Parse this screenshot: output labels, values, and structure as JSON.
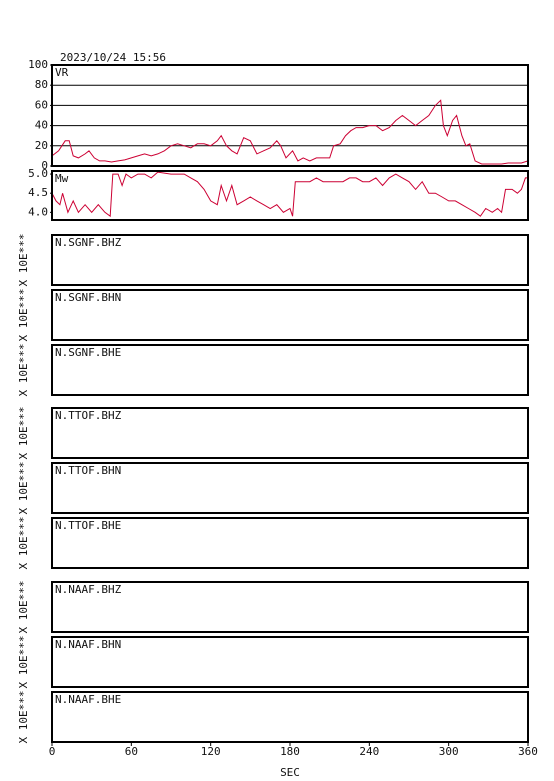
{
  "timestamp": "2023/10/24 15:56",
  "chart_data": [
    {
      "type": "line",
      "title": "VR",
      "color": "#cc0033",
      "grid": true,
      "ylim": [
        0,
        100
      ],
      "yticks": [
        0,
        20,
        40,
        60,
        80,
        100
      ],
      "x": [
        0,
        5,
        10,
        13,
        16,
        20,
        25,
        28,
        32,
        36,
        40,
        45,
        50,
        55,
        60,
        65,
        70,
        75,
        80,
        85,
        90,
        95,
        100,
        105,
        110,
        115,
        120,
        125,
        128,
        132,
        136,
        140,
        145,
        150,
        155,
        160,
        165,
        170,
        173,
        177,
        182,
        186,
        190,
        195,
        200,
        205,
        210,
        213,
        218,
        222,
        226,
        230,
        235,
        240,
        245,
        250,
        255,
        260,
        265,
        270,
        275,
        280,
        285,
        290,
        294,
        296,
        299,
        303,
        306,
        310,
        313,
        316,
        320,
        325,
        330,
        335,
        340,
        345,
        350,
        355,
        360
      ],
      "values": [
        10,
        15,
        25,
        25,
        10,
        8,
        12,
        15,
        8,
        5,
        5,
        4,
        5,
        6,
        8,
        10,
        12,
        10,
        12,
        15,
        20,
        22,
        20,
        18,
        22,
        22,
        20,
        25,
        30,
        20,
        15,
        12,
        28,
        25,
        12,
        15,
        18,
        25,
        20,
        8,
        15,
        5,
        8,
        5,
        8,
        8,
        8,
        20,
        22,
        30,
        35,
        38,
        38,
        40,
        40,
        35,
        38,
        45,
        50,
        45,
        40,
        45,
        50,
        60,
        65,
        40,
        30,
        45,
        50,
        30,
        20,
        22,
        5,
        2,
        2,
        2,
        2,
        3,
        3,
        3,
        5
      ]
    },
    {
      "type": "line",
      "title": "Mw",
      "color": "#cc0033",
      "grid": false,
      "ylim": [
        3.8,
        5.08
      ],
      "yticks": [
        {
          "value": 5,
          "label": "5.0"
        },
        4.5,
        {
          "value": 4,
          "label": "4.0"
        }
      ],
      "x": [
        0,
        3,
        6,
        8,
        12,
        16,
        20,
        25,
        30,
        35,
        40,
        44,
        46,
        50,
        53,
        56,
        60,
        65,
        70,
        75,
        80,
        90,
        100,
        105,
        110,
        115,
        120,
        125,
        128,
        132,
        136,
        140,
        145,
        150,
        155,
        160,
        165,
        170,
        175,
        180,
        182,
        184,
        190,
        195,
        200,
        205,
        210,
        215,
        220,
        225,
        230,
        235,
        240,
        245,
        250,
        255,
        260,
        265,
        270,
        275,
        280,
        285,
        290,
        295,
        300,
        305,
        310,
        315,
        320,
        324,
        328,
        333,
        337,
        340,
        343,
        348,
        352,
        355,
        358,
        360
      ],
      "values": [
        4.5,
        4.3,
        4.2,
        4.5,
        4.0,
        4.3,
        4.0,
        4.2,
        4.0,
        4.2,
        4.0,
        3.9,
        5.0,
        5.0,
        4.7,
        5.0,
        4.9,
        5.0,
        5.0,
        4.9,
        5.05,
        5.0,
        5.0,
        4.9,
        4.8,
        4.6,
        4.3,
        4.2,
        4.7,
        4.3,
        4.7,
        4.2,
        4.3,
        4.4,
        4.3,
        4.2,
        4.1,
        4.2,
        4.0,
        4.1,
        3.9,
        4.8,
        4.8,
        4.8,
        4.9,
        4.8,
        4.8,
        4.8,
        4.8,
        4.9,
        4.9,
        4.8,
        4.8,
        4.9,
        4.7,
        4.9,
        5.0,
        4.9,
        4.8,
        4.6,
        4.8,
        4.5,
        4.5,
        4.4,
        4.3,
        4.3,
        4.2,
        4.1,
        4.0,
        3.9,
        4.1,
        4.0,
        4.1,
        4.0,
        4.6,
        4.6,
        4.5,
        4.6,
        4.9,
        4.9
      ]
    }
  ],
  "stations": [
    {
      "label": "N.SGNF.BHZ",
      "scale_label": "X 10E***"
    },
    {
      "label": "N.SGNF.BHN",
      "scale_label": "X 10E***"
    },
    {
      "label": "N.SGNF.BHE",
      "scale_label": "X 10E***"
    },
    {
      "label": "N.TTOF.BHZ",
      "scale_label": "X 10E***"
    },
    {
      "label": "N.TTOF.BHN",
      "scale_label": "X 10E***"
    },
    {
      "label": "N.TTOF.BHE",
      "scale_label": "X 10E***"
    },
    {
      "label": "N.NAAF.BHZ",
      "scale_label": "X 10E***"
    },
    {
      "label": "N.NAAF.BHN",
      "scale_label": "X 10E***"
    },
    {
      "label": "N.NAAF.BHE",
      "scale_label": "X 10E***"
    }
  ],
  "x_axis": {
    "label": "SEC",
    "xlim": [
      0,
      360
    ],
    "xticks": [
      0,
      60,
      120,
      180,
      240,
      300,
      360
    ]
  }
}
